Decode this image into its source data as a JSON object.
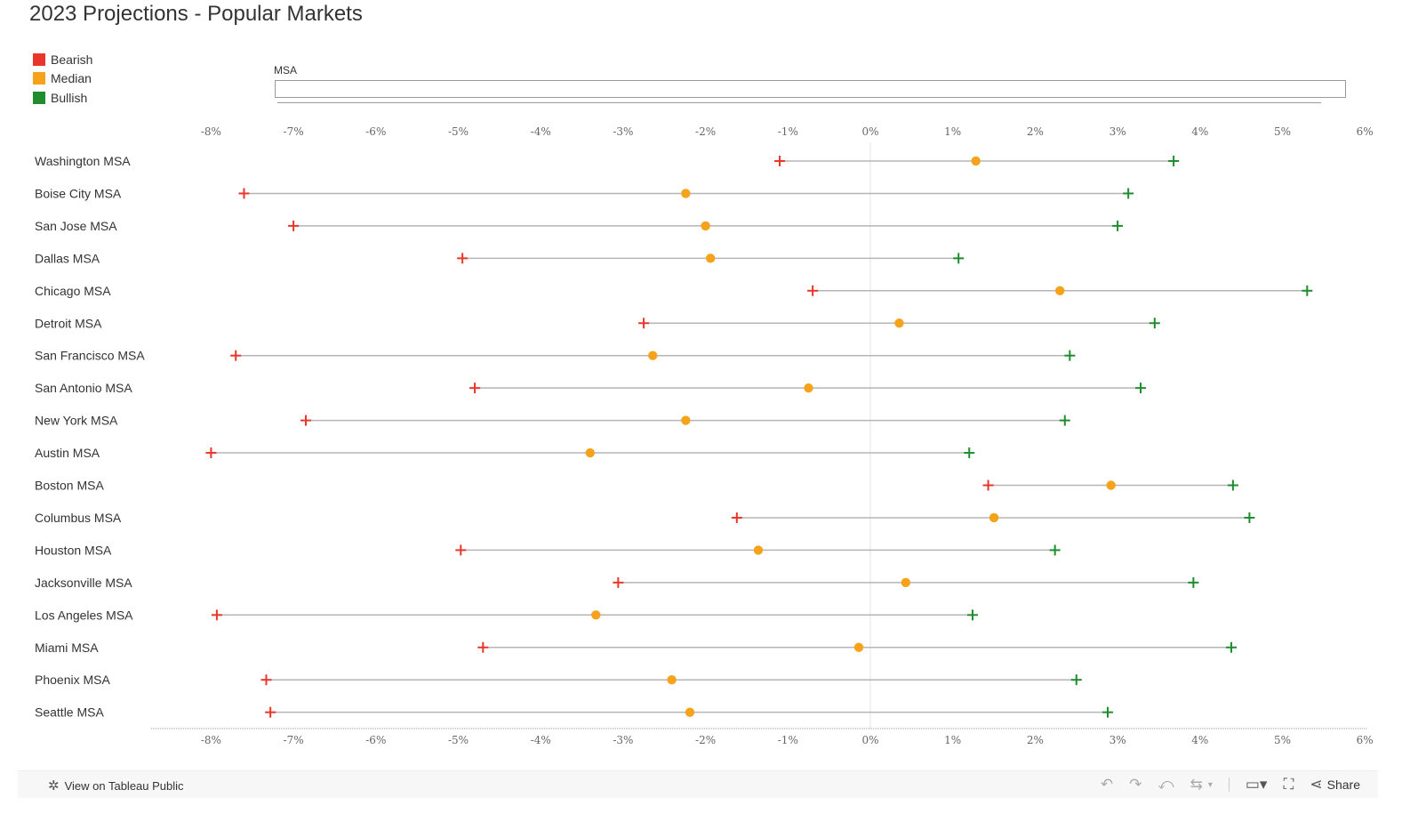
{
  "title": "2023 Projections - Popular Markets",
  "legend": [
    {
      "label": "Bearish",
      "color": "#e8372a"
    },
    {
      "label": "Median",
      "color": "#f7a21b"
    },
    {
      "label": "Bullish",
      "color": "#1f8c2e"
    }
  ],
  "filter": {
    "label": "MSA"
  },
  "toolbar": {
    "view_label": "View on Tableau Public",
    "share_label": "Share"
  },
  "chart_data": {
    "type": "scatter",
    "title": "2023 Projections - Popular Markets",
    "x_axis_ticks": [
      "-8%",
      "-7%",
      "-6%",
      "-5%",
      "-4%",
      "-3%",
      "-2%",
      "-1%",
      "0%",
      "1%",
      "2%",
      "3%",
      "4%",
      "5%",
      "6%"
    ],
    "xlim": [
      -8.7,
      6.0
    ],
    "grid": false,
    "reference_line_x": 0,
    "categories": [
      "Washington MSA",
      "Boise City MSA",
      "San Jose MSA",
      "Dallas MSA",
      "Chicago MSA",
      "Detroit MSA",
      "San Francisco MSA",
      "San Antonio MSA",
      "New York MSA",
      "Austin MSA",
      "Boston MSA",
      "Columbus MSA",
      "Houston MSA",
      "Jacksonville MSA",
      "Los Angeles MSA",
      "Miami MSA",
      "Phoenix MSA",
      "Seattle MSA"
    ],
    "series": [
      {
        "name": "Bearish",
        "color": "#e8372a",
        "marker": "cross",
        "values": [
          -1.1,
          -7.6,
          -7.0,
          -4.95,
          -0.7,
          -2.75,
          -7.7,
          -4.8,
          -6.85,
          -8.0,
          1.43,
          -1.62,
          -4.97,
          -3.06,
          -7.93,
          -4.7,
          -7.33,
          -7.28
        ]
      },
      {
        "name": "Median",
        "color": "#f7a21b",
        "marker": "circle",
        "values": [
          1.28,
          -2.24,
          -2.0,
          -1.94,
          2.3,
          0.35,
          -2.64,
          -0.75,
          -2.24,
          -3.4,
          2.92,
          1.5,
          -1.36,
          0.43,
          -3.33,
          -0.14,
          -2.41,
          -2.19
        ]
      },
      {
        "name": "Bullish",
        "color": "#1f8c2e",
        "marker": "cross",
        "values": [
          3.68,
          3.13,
          3.0,
          1.07,
          5.3,
          3.45,
          2.42,
          3.28,
          2.36,
          1.2,
          4.4,
          4.6,
          2.24,
          3.92,
          1.24,
          4.38,
          2.5,
          2.88
        ]
      }
    ]
  }
}
